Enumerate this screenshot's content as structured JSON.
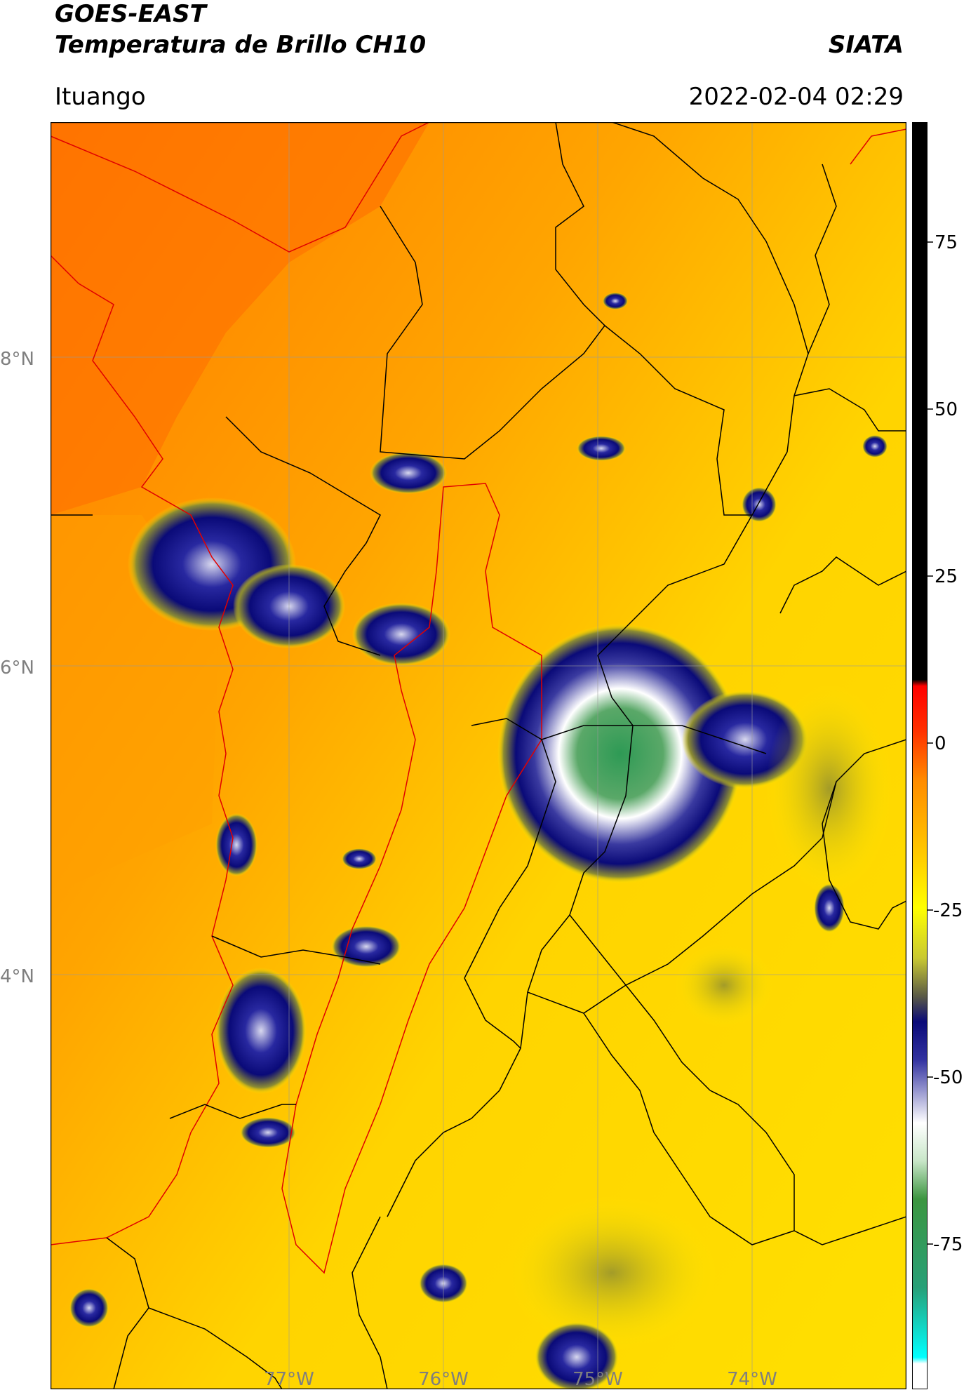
{
  "header": {
    "satellite": "GOES-EAST",
    "product": "Temperatura de Brillo CH10",
    "organization": "SIATA",
    "location": "Ituango",
    "timestamp": "2022-02-04 02:29"
  },
  "map": {
    "lat_labels": [
      "8°N",
      "6°N",
      "4°N"
    ],
    "lon_labels": [
      "77°W",
      "76°W",
      "75°W",
      "74°W"
    ],
    "border_color_country": "#e00000",
    "border_color_region": "#000000"
  },
  "colorbar": {
    "tick_labels": [
      "75",
      "50",
      "25",
      "0",
      "-25",
      "-50",
      "-75"
    ],
    "colors": {
      "black": "#000000",
      "red": "#ff0000",
      "orange": "#ff8c00",
      "yellow": "#ffff00",
      "olive": "#8c8c32",
      "navy": "#0a0a78",
      "white": "#ffffff",
      "green": "#32a050",
      "cyan": "#00ffff"
    }
  }
}
